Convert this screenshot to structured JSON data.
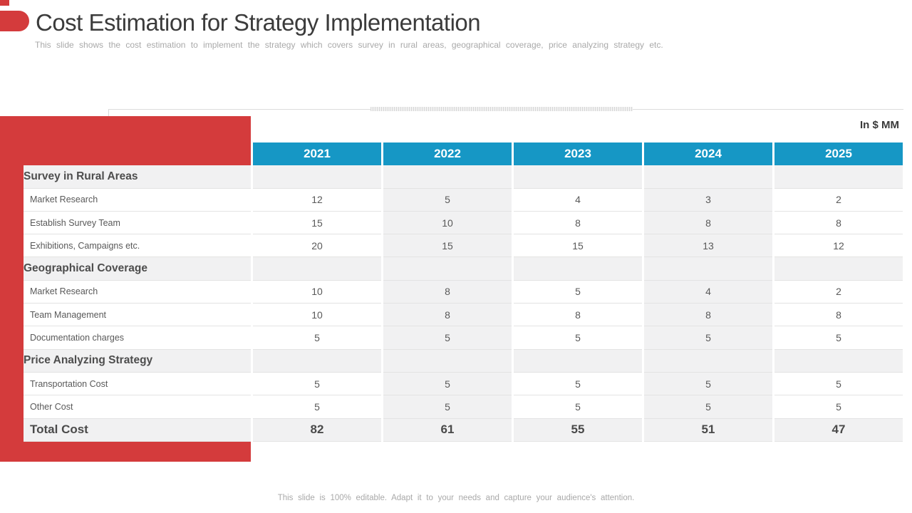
{
  "slide": {
    "title": "Cost Estimation for Strategy Implementation",
    "subtitle": "This slide shows the cost estimation to implement the strategy which covers survey in rural areas, geographical coverage, price analyzing strategy etc.",
    "unit_label": "In $ MM",
    "footer": "This slide is 100% editable. Adapt it to your needs and capture your audience's attention."
  },
  "colors": {
    "accent_red": "#d43b3c",
    "header_blue": "#1697c5",
    "row_alt_gray": "#f1f1f2"
  },
  "chart_data": {
    "type": "table",
    "title": "Cost Estimation for Strategy Implementation (In $ MM)",
    "columns": [
      "2021",
      "2022",
      "2023",
      "2024",
      "2025"
    ],
    "sections": [
      {
        "name": "Survey in Rural Areas",
        "rows": [
          {
            "label": "Market Research",
            "values": [
              12,
              5,
              4,
              3,
              2
            ]
          },
          {
            "label": "Establish Survey Team",
            "values": [
              15,
              10,
              8,
              8,
              8
            ]
          },
          {
            "label": "Exhibitions,  Campaigns etc.",
            "values": [
              20,
              15,
              15,
              13,
              12
            ]
          }
        ]
      },
      {
        "name": "Geographical Coverage",
        "rows": [
          {
            "label": "Market Research",
            "values": [
              10,
              8,
              5,
              4,
              2
            ]
          },
          {
            "label": "Team Management",
            "values": [
              10,
              8,
              8,
              8,
              8
            ]
          },
          {
            "label": "Documentation charges",
            "values": [
              5,
              5,
              5,
              5,
              5
            ]
          }
        ]
      },
      {
        "name": "Price Analyzing Strategy",
        "rows": [
          {
            "label": "Transportation Cost",
            "values": [
              5,
              5,
              5,
              5,
              5
            ]
          },
          {
            "label": "Other Cost",
            "values": [
              5,
              5,
              5,
              5,
              5
            ]
          }
        ]
      }
    ],
    "total": {
      "label": "Total Cost",
      "values": [
        82,
        61,
        55,
        51,
        47
      ]
    }
  }
}
